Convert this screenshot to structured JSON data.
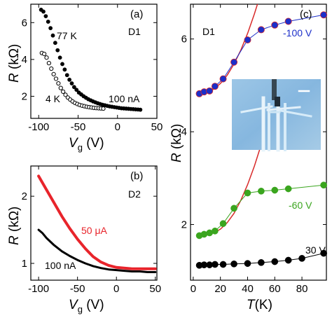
{
  "chart_data": [
    {
      "panel": "(a)",
      "device": "D1",
      "type": "scatter",
      "xlabel": "Vg (V)",
      "ylabel": "R (kΩ)",
      "xlim": [
        -110,
        50
      ],
      "ylim": [
        0.8,
        7.0
      ],
      "xticks": [
        -100,
        -50,
        0,
        50
      ],
      "yticks": [
        2,
        4,
        6
      ],
      "annotations": [
        "77 K",
        "4 K",
        "100 nA"
      ],
      "series": [
        {
          "name": "77 K",
          "color": "#000000",
          "marker": "filled-circle",
          "points": [
            [
              -97,
              6.7
            ],
            [
              -94,
              6.6
            ],
            [
              -91,
              6.35
            ],
            [
              -88,
              6.05
            ],
            [
              -85,
              5.7
            ],
            [
              -82,
              5.3
            ],
            [
              -79,
              4.9
            ],
            [
              -76,
              4.5
            ],
            [
              -73,
              4.1
            ],
            [
              -70,
              3.75
            ],
            [
              -67,
              3.45
            ],
            [
              -64,
              3.15
            ],
            [
              -61,
              2.9
            ],
            [
              -58,
              2.7
            ],
            [
              -55,
              2.5
            ],
            [
              -52,
              2.35
            ],
            [
              -49,
              2.2
            ],
            [
              -46,
              2.1
            ],
            [
              -43,
              2.0
            ],
            [
              -40,
              1.92
            ],
            [
              -37,
              1.84
            ],
            [
              -34,
              1.78
            ],
            [
              -31,
              1.72
            ],
            [
              -28,
              1.67
            ],
            [
              -25,
              1.62
            ],
            [
              -22,
              1.58
            ],
            [
              -19,
              1.54
            ],
            [
              -16,
              1.51
            ],
            [
              -13,
              1.48
            ],
            [
              -10,
              1.45
            ],
            [
              -7,
              1.43
            ],
            [
              -4,
              1.41
            ],
            [
              -1,
              1.39
            ],
            [
              2,
              1.37
            ],
            [
              5,
              1.35
            ],
            [
              8,
              1.34
            ],
            [
              11,
              1.33
            ],
            [
              14,
              1.32
            ],
            [
              17,
              1.31
            ],
            [
              20,
              1.3
            ],
            [
              23,
              1.29
            ],
            [
              26,
              1.28
            ],
            [
              29,
              1.27
            ]
          ]
        },
        {
          "name": "4 K",
          "color": "#000000",
          "marker": "open-circle",
          "points": [
            [
              -96,
              4.35
            ],
            [
              -93,
              4.3
            ],
            [
              -90,
              4.1
            ],
            [
              -87,
              3.8
            ],
            [
              -84,
              3.5
            ],
            [
              -81,
              3.2
            ],
            [
              -78,
              2.95
            ],
            [
              -75,
              2.7
            ],
            [
              -72,
              2.45
            ],
            [
              -69,
              2.25
            ],
            [
              -66,
              2.08
            ],
            [
              -63,
              1.93
            ],
            [
              -60,
              1.82
            ],
            [
              -57,
              1.72
            ],
            [
              -54,
              1.64
            ],
            [
              -51,
              1.58
            ],
            [
              -48,
              1.53
            ],
            [
              -45,
              1.49
            ],
            [
              -42,
              1.46
            ],
            [
              -39,
              1.43
            ],
            [
              -36,
              1.41
            ],
            [
              -33,
              1.39
            ],
            [
              -30,
              1.37
            ],
            [
              -27,
              1.36
            ],
            [
              -24,
              1.35
            ],
            [
              -21,
              1.34
            ],
            [
              -18,
              1.33
            ]
          ]
        }
      ]
    },
    {
      "panel": "(b)",
      "device": "D2",
      "type": "line",
      "xlabel": "Vg (V)",
      "ylabel": "R (kΩ)",
      "xlim": [
        -110,
        52
      ],
      "ylim": [
        0.75,
        2.45
      ],
      "xticks": [
        -100,
        -50,
        0,
        50
      ],
      "yticks": [
        1,
        2
      ],
      "annotations": [
        "50 μA",
        "100 nA"
      ],
      "series": [
        {
          "name": "50 μA",
          "color": "#e8242b",
          "points": [
            [
              -100,
              2.3
            ],
            [
              -90,
              2.1
            ],
            [
              -80,
              1.9
            ],
            [
              -70,
              1.7
            ],
            [
              -60,
              1.52
            ],
            [
              -50,
              1.36
            ],
            [
              -40,
              1.22
            ],
            [
              -30,
              1.1
            ],
            [
              -20,
              1.02
            ],
            [
              -10,
              0.97
            ],
            [
              0,
              0.94
            ],
            [
              10,
              0.93
            ],
            [
              20,
              0.92
            ],
            [
              30,
              0.92
            ],
            [
              40,
              0.92
            ],
            [
              50,
              0.92
            ]
          ]
        },
        {
          "name": "100 nA",
          "color": "#000000",
          "points": [
            [
              -100,
              1.5
            ],
            [
              -95,
              1.45
            ],
            [
              -90,
              1.38
            ],
            [
              -80,
              1.27
            ],
            [
              -70,
              1.18
            ],
            [
              -60,
              1.11
            ],
            [
              -50,
              1.05
            ],
            [
              -40,
              1.0
            ],
            [
              -30,
              0.96
            ],
            [
              -20,
              0.93
            ],
            [
              -10,
              0.91
            ],
            [
              0,
              0.9
            ],
            [
              10,
              0.89
            ],
            [
              20,
              0.88
            ],
            [
              30,
              0.88
            ],
            [
              40,
              0.87
            ],
            [
              50,
              0.87
            ]
          ]
        }
      ]
    },
    {
      "panel": "(c)",
      "device": "D1",
      "type": "line",
      "xlabel": "T(K)",
      "ylabel": "R (kΩ)",
      "xlim": [
        -2,
        98
      ],
      "ylim": [
        0.8,
        6.75
      ],
      "xticks": [
        0,
        20,
        40,
        60,
        80
      ],
      "yticks": [
        2,
        4,
        6
      ],
      "series": [
        {
          "name": "-100 V",
          "color": "#1c2fc9",
          "points": [
            [
              4.5,
              4.82
            ],
            [
              8,
              4.86
            ],
            [
              12,
              4.88
            ],
            [
              16,
              4.98
            ],
            [
              22,
              5.14
            ],
            [
              30,
              5.5
            ],
            [
              40,
              5.98
            ],
            [
              50,
              6.2
            ],
            [
              60,
              6.3
            ],
            [
              70,
              6.38
            ],
            [
              96,
              6.52
            ]
          ]
        },
        {
          "name": "-60 V",
          "color": "#3aa51e",
          "points": [
            [
              4.5,
              1.76
            ],
            [
              8,
              1.79
            ],
            [
              12,
              1.82
            ],
            [
              16,
              1.86
            ],
            [
              22,
              2.02
            ],
            [
              30,
              2.35
            ],
            [
              40,
              2.68
            ],
            [
              50,
              2.72
            ],
            [
              60,
              2.74
            ],
            [
              70,
              2.77
            ],
            [
              96,
              2.85
            ]
          ]
        },
        {
          "name": "30 V",
          "color": "#000000",
          "points": [
            [
              4.5,
              1.12
            ],
            [
              8,
              1.13
            ],
            [
              12,
              1.13
            ],
            [
              16,
              1.14
            ],
            [
              22,
              1.14
            ],
            [
              30,
              1.15
            ],
            [
              40,
              1.16
            ],
            [
              50,
              1.18
            ],
            [
              60,
              1.2
            ],
            [
              70,
              1.23
            ],
            [
              80,
              1.27
            ],
            [
              96,
              1.38
            ]
          ]
        }
      ],
      "fits": [
        {
          "color": "#d82a2a",
          "points": [
            [
              5,
              4.8
            ],
            [
              10,
              4.84
            ],
            [
              15,
              4.92
            ],
            [
              20,
              5.04
            ],
            [
              25,
              5.22
            ],
            [
              30,
              5.46
            ],
            [
              35,
              5.76
            ],
            [
              40,
              6.12
            ],
            [
              45,
              6.54
            ],
            [
              48,
              6.82
            ]
          ]
        },
        {
          "color": "#d82a2a",
          "points": [
            [
              5,
              1.76
            ],
            [
              10,
              1.78
            ],
            [
              15,
              1.82
            ],
            [
              20,
              1.9
            ],
            [
              25,
              2.04
            ],
            [
              30,
              2.24
            ],
            [
              35,
              2.52
            ],
            [
              40,
              2.86
            ],
            [
              45,
              3.26
            ],
            [
              50,
              3.72
            ],
            [
              54,
              4.1
            ]
          ]
        }
      ]
    }
  ]
}
